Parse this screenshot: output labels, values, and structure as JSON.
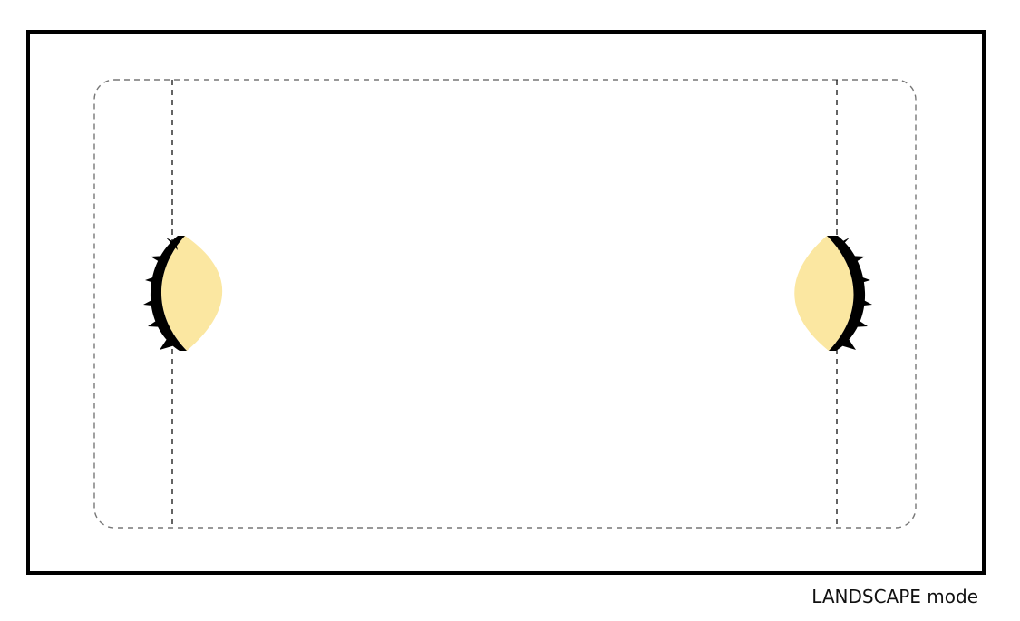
{
  "caption": "LANDSCAPE mode",
  "orientation": "landscape",
  "colors": {
    "frame_border": "#000000",
    "safe_area_outline": "#777777",
    "inset_line": "#222222",
    "cutout_fill": "#FBE7A1",
    "cutout_edge": "#000000"
  },
  "icons": {
    "left_cutout": "sensor-housing-icon",
    "right_cutout": "sensor-housing-icon"
  }
}
